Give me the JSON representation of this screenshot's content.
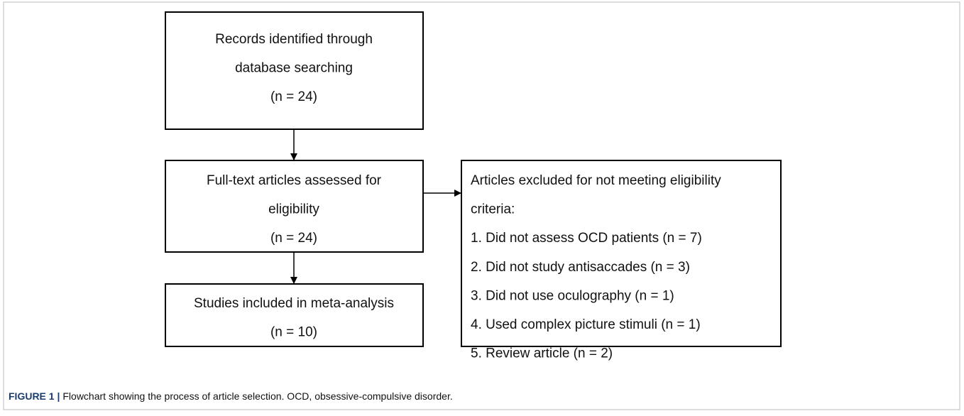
{
  "nodes": [
    {
      "lines": [
        "Records identified through",
        "database searching",
        "(n = 24)"
      ]
    },
    {
      "lines": [
        "Full-text articles assessed for",
        "eligibility",
        "(n = 24)"
      ]
    },
    {
      "lines": [
        "Studies included in meta-analysis",
        "(n = 10)"
      ]
    },
    {
      "lines": [
        "Articles excluded for not meeting eligibility",
        "criteria:",
        "1. Did not assess OCD patients (n = 7)",
        "2. Did not study antisaccades (n = 3)",
        "3. Did not use oculography (n = 1)",
        "4. Used complex picture stimuli (n = 1)",
        "5. Review article (n = 2)"
      ]
    }
  ],
  "caption": {
    "label": "FIGURE 1 |",
    "text": "Flowchart showing the process of article selection. OCD, obsessive-compulsive disorder."
  }
}
